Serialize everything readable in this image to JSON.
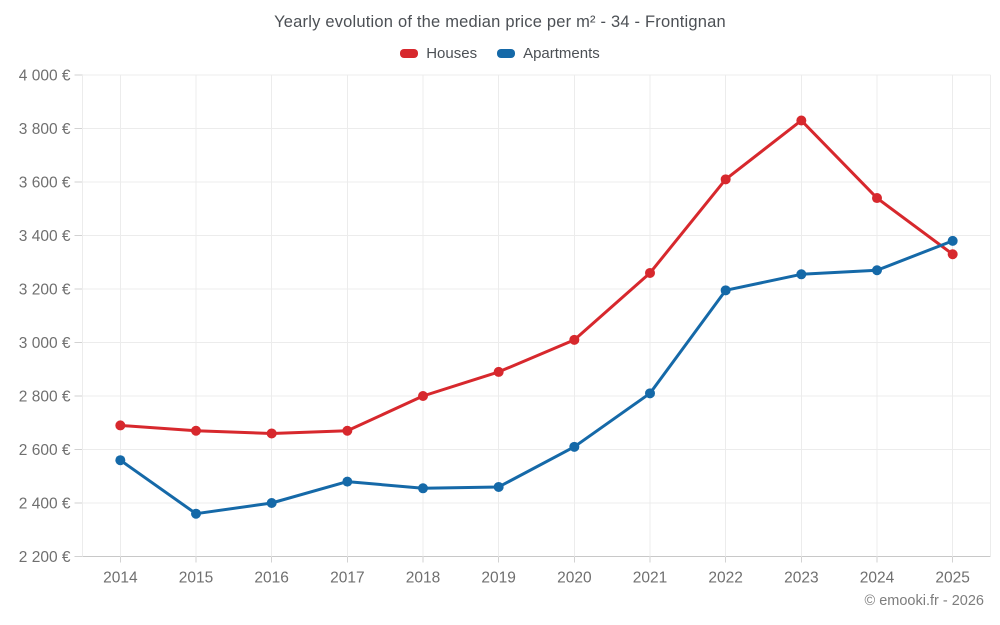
{
  "header": {
    "title": "Yearly evolution of the median price per m² - 34 - Frontignan"
  },
  "footer": {
    "copyright": "© emooki.fr - 2026"
  },
  "chart_data": {
    "type": "line",
    "title": "Yearly evolution of the median price per m² - 34 - Frontignan",
    "categories": [
      "2014",
      "2015",
      "2016",
      "2017",
      "2018",
      "2019",
      "2020",
      "2021",
      "2022",
      "2023",
      "2024",
      "2025"
    ],
    "series": [
      {
        "name": "Houses",
        "color": "#d7282d",
        "values": [
          2690,
          2670,
          2660,
          2670,
          2800,
          2890,
          3010,
          3260,
          3610,
          3830,
          3540,
          3330
        ]
      },
      {
        "name": "Apartments",
        "color": "#1569a8",
        "values": [
          2560,
          2360,
          2400,
          2480,
          2455,
          2460,
          2610,
          2810,
          3195,
          3255,
          3270,
          3380
        ]
      }
    ],
    "xlabel": "",
    "ylabel": "",
    "ylim": [
      2200,
      4000
    ],
    "y_tick_values": [
      2200,
      2400,
      2600,
      2800,
      3000,
      3200,
      3400,
      3600,
      3800,
      4000
    ],
    "y_tick_labels": [
      "2 200 €",
      "2 400 €",
      "2 600 €",
      "2 800 €",
      "3 000 €",
      "3 200 €",
      "3 400 €",
      "3 600 €",
      "3 800 €",
      "4 000 €"
    ],
    "grid": true,
    "legend_position": "top"
  }
}
